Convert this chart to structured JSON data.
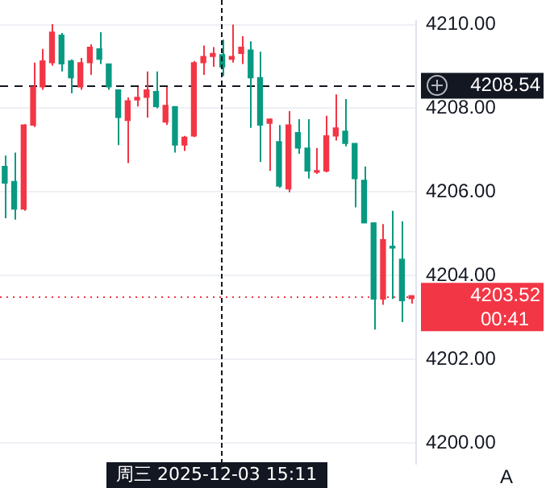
{
  "chart_data": {
    "type": "candlestick",
    "categories": [
      null,
      null,
      null,
      null,
      null,
      null,
      null,
      null,
      null,
      null,
      null,
      null,
      null,
      null,
      null,
      null,
      null,
      null,
      null,
      null,
      null,
      null,
      null,
      null,
      null,
      null,
      null,
      null,
      null,
      null,
      null,
      null,
      null,
      null,
      null,
      null,
      null,
      null,
      null,
      null,
      null,
      null,
      null,
      null
    ],
    "ohlc": [
      [
        4206.61,
        4206.87,
        4205.37,
        4206.21
      ],
      [
        4206.25,
        4206.94,
        4205.34,
        4205.59
      ],
      [
        4205.59,
        4207.62,
        4205.55,
        4207.6
      ],
      [
        4207.6,
        4209.09,
        4207.55,
        4208.51
      ],
      [
        4208.51,
        4209.42,
        4208.44,
        4209.13
      ],
      [
        4209.09,
        4210.01,
        4209.02,
        4209.82
      ],
      [
        4209.75,
        4209.8,
        4208.88,
        4209.06
      ],
      [
        4209.13,
        4209.17,
        4208.36,
        4208.73
      ],
      [
        4208.51,
        4209.2,
        4208.44,
        4209.09
      ],
      [
        4209.09,
        4209.53,
        4208.8,
        4209.46
      ],
      [
        4209.42,
        4209.82,
        4209.06,
        4209.17
      ],
      [
        4209.06,
        4209.06,
        4208.44,
        4208.51
      ],
      [
        4208.44,
        4208.44,
        4207.12,
        4207.78
      ],
      [
        4207.71,
        4208.26,
        4206.69,
        4208.18
      ],
      [
        4208.2,
        4208.51,
        4208.04,
        4208.26
      ],
      [
        4208.26,
        4208.88,
        4207.78,
        4208.44
      ],
      [
        4208.4,
        4208.88,
        4208.0,
        4208.04
      ],
      [
        4207.67,
        4208.51,
        4207.6,
        4208.07
      ],
      [
        4208.04,
        4208.04,
        4206.94,
        4207.12
      ],
      [
        4207.12,
        4207.34,
        4206.98,
        4207.31
      ],
      [
        4207.34,
        4209.13,
        4207.31,
        4209.09
      ],
      [
        4209.09,
        4209.5,
        4208.8,
        4209.24
      ],
      [
        4209.24,
        4209.46,
        4208.99,
        4209.31
      ],
      [
        4209.28,
        4209.64,
        4208.77,
        4208.99
      ],
      [
        4209.17,
        4210.0,
        4209.09,
        4209.24
      ],
      [
        4209.31,
        4209.72,
        4209.06,
        4209.46
      ],
      [
        4209.39,
        4209.6,
        4207.53,
        4208.73
      ],
      [
        4208.73,
        4209.35,
        4206.72,
        4207.6
      ],
      [
        4207.64,
        4207.76,
        4206.5,
        4207.74
      ],
      [
        4207.2,
        4207.6,
        4206.1,
        4206.14
      ],
      [
        4206.07,
        4207.93,
        4205.99,
        4207.6
      ],
      [
        4207.42,
        4207.74,
        4206.91,
        4207.05
      ],
      [
        4207.05,
        4207.74,
        4206.32,
        4206.5
      ],
      [
        4206.47,
        4207.05,
        4206.43,
        4206.5
      ],
      [
        4206.5,
        4207.82,
        4206.47,
        4207.34
      ],
      [
        4207.34,
        4208.33,
        4207.23,
        4207.53
      ],
      [
        4207.45,
        4208.22,
        4207.09,
        4207.16
      ],
      [
        4207.16,
        4207.16,
        4205.63,
        4206.32
      ],
      [
        4206.28,
        4206.61,
        4205.26,
        4205.26
      ],
      [
        4205.26,
        4205.26,
        4202.71,
        4203.44
      ],
      [
        4203.44,
        4205.23,
        4203.3,
        4204.86
      ],
      [
        4204.7,
        4205.55,
        4203.44,
        4204.66
      ],
      [
        4204.39,
        4205.3,
        4202.89,
        4203.4
      ],
      [
        4203.45,
        4203.52,
        4203.33,
        4203.52
      ]
    ],
    "colors": [
      "#089981",
      "#089981",
      "#f23645",
      "#f23645",
      "#f23645",
      "#f23645",
      "#089981",
      "#089981",
      "#f23645",
      "#f23645",
      "#089981",
      "#089981",
      "#089981",
      "#f23645",
      "#f23645",
      "#f23645",
      "#089981",
      "#f23645",
      "#089981",
      "#f23645",
      "#f23645",
      "#f23645",
      "#f23645",
      "#089981",
      "#f23645",
      "#f23645",
      "#089981",
      "#089981",
      "#f23645",
      "#089981",
      "#f23645",
      "#089981",
      "#089981",
      "#f23645",
      "#f23645",
      "#f23645",
      "#089981",
      "#089981",
      "#089981",
      "#089981",
      "#f23645",
      "#089981",
      "#089981",
      "#f23645"
    ],
    "ylim": [
      4199.5,
      4210.08
    ],
    "yticks": [
      {
        "value": 4200,
        "label": "4200.00"
      },
      {
        "value": 4202,
        "label": "4202.00"
      },
      {
        "value": 4204,
        "label": "4204.00"
      },
      {
        "value": 4206,
        "label": "4206.00"
      },
      {
        "value": 4208,
        "label": "4208.00"
      },
      {
        "value": 4210,
        "label": "4210.00"
      }
    ],
    "tick_labels": "y",
    "grid": "y",
    "ref_lines": [
      {
        "axis": "y",
        "value": 4208.54,
        "label": "4208.54",
        "color": "#131722",
        "line_style": "dashed"
      },
      {
        "axis": "y",
        "value": 4203.52,
        "label": "4203.52\n00:41",
        "color": "#f23645",
        "line_style": "dotted"
      }
    ],
    "annotations": [
      "周三 2025-12-03  15:11",
      "A"
    ]
  }
}
